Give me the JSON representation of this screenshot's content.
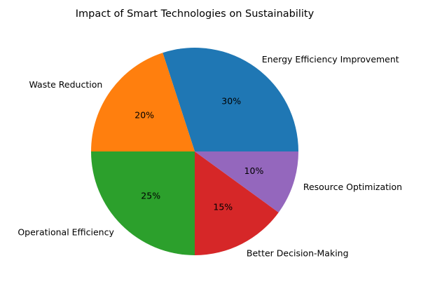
{
  "chart_data": {
    "type": "pie",
    "title": "Impact of Smart Technologies on Sustainability",
    "categories": [
      "Energy Efficiency Improvement",
      "Waste Reduction",
      "Operational Efficiency",
      "Better Decision-Making",
      "Resource Optimization"
    ],
    "values": [
      30,
      20,
      25,
      15,
      10
    ],
    "percent_labels": [
      "30%",
      "20%",
      "25%",
      "15%",
      "10%"
    ],
    "colors": [
      "#1f77b4",
      "#ff7f0e",
      "#2ca02c",
      "#d62728",
      "#9467bd"
    ],
    "start_angle_deg": 0,
    "direction": "counterclockwise"
  }
}
